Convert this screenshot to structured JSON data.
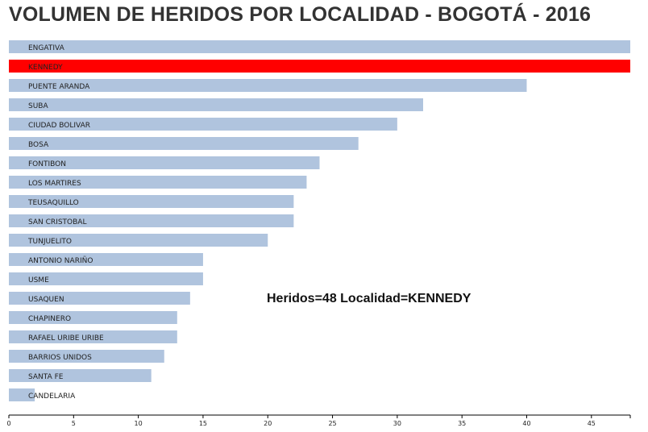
{
  "chart_data": {
    "type": "bar",
    "orientation": "horizontal",
    "title": "VOLUMEN DE HERIDOS POR LOCALIDAD - BOGOTÁ - 2016",
    "categories": [
      "ENGATIVA",
      "KENNEDY",
      "PUENTE ARANDA",
      "SUBA",
      "CIUDAD BOLIVAR",
      "BOSA",
      "FONTIBON",
      "LOS MARTIRES",
      "TEUSAQUILLO",
      "SAN CRISTOBAL",
      "TUNJUELITO",
      "ANTONIO NARIÑO",
      "USME",
      "USAQUEN",
      "CHAPINERO",
      "RAFAEL URIBE URIBE",
      "BARRIOS UNIDOS",
      "SANTA FE",
      "CANDELARIA"
    ],
    "values": [
      48,
      48,
      40,
      32,
      30,
      27,
      24,
      23,
      22,
      22,
      20,
      15,
      15,
      14,
      13,
      13,
      12,
      11,
      2
    ],
    "xlim": [
      0,
      48
    ],
    "xticks": [
      0,
      5,
      10,
      15,
      20,
      25,
      30,
      35,
      40,
      45
    ],
    "highlight_index": 1,
    "colors": {
      "bar": "#b0c4de",
      "highlight": "#ff0000",
      "axis": "#000000"
    },
    "grid": false,
    "legend": "none"
  },
  "tooltip": {
    "text": "Heridos=48 Localidad=KENNEDY"
  }
}
